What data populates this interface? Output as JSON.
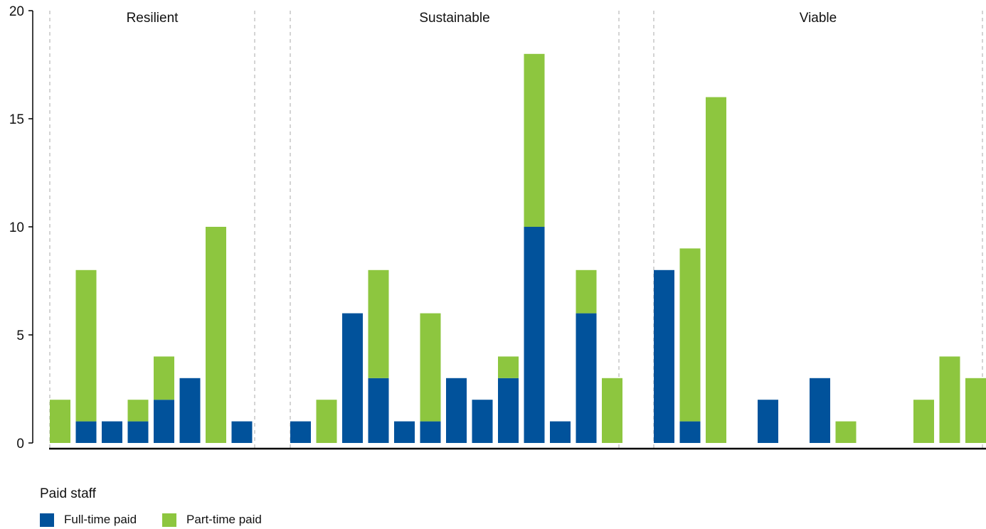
{
  "chart_data": {
    "type": "bar",
    "stacked": true,
    "ylim": [
      0,
      20
    ],
    "yticks": [
      0,
      5,
      10,
      15,
      20
    ],
    "groups": [
      {
        "label": "Resilient",
        "bars": [
          {
            "full": 0,
            "part": 2
          },
          {
            "full": 1,
            "part": 7
          },
          {
            "full": 1,
            "part": 0
          },
          {
            "full": 1,
            "part": 1
          },
          {
            "full": 2,
            "part": 2
          },
          {
            "full": 3,
            "part": 0
          },
          {
            "full": 0,
            "part": 10
          },
          {
            "full": 1,
            "part": 0
          }
        ]
      },
      {
        "label": "Sustainable",
        "bars": [
          {
            "full": 1,
            "part": 0
          },
          {
            "full": 0,
            "part": 2
          },
          {
            "full": 6,
            "part": 0
          },
          {
            "full": 3,
            "part": 5
          },
          {
            "full": 1,
            "part": 0
          },
          {
            "full": 1,
            "part": 5
          },
          {
            "full": 3,
            "part": 0
          },
          {
            "full": 2,
            "part": 0
          },
          {
            "full": 3,
            "part": 1
          },
          {
            "full": 10,
            "part": 8
          },
          {
            "full": 1,
            "part": 0
          },
          {
            "full": 6,
            "part": 2
          },
          {
            "full": 0,
            "part": 3
          }
        ]
      },
      {
        "label": "Viable",
        "bars": [
          {
            "full": 8,
            "part": 0
          },
          {
            "full": 1,
            "part": 8
          },
          {
            "full": 0,
            "part": 16
          },
          {
            "full": 0,
            "part": 0
          },
          {
            "full": 2,
            "part": 0
          },
          {
            "full": 0,
            "part": 0
          },
          {
            "full": 3,
            "part": 0
          },
          {
            "full": 0,
            "part": 1
          },
          {
            "full": 0,
            "part": 0
          },
          {
            "full": 0,
            "part": 0
          },
          {
            "full": 0,
            "part": 2
          },
          {
            "full": 0,
            "part": 4
          },
          {
            "full": 0,
            "part": 3
          }
        ]
      }
    ],
    "series": [
      {
        "key": "full",
        "name": "Full-time paid",
        "color": "#01529b"
      },
      {
        "key": "part",
        "name": "Part-time paid",
        "color": "#8dc63f"
      }
    ],
    "legend_title": "Paid staff",
    "legend_position": "bottom-left"
  }
}
